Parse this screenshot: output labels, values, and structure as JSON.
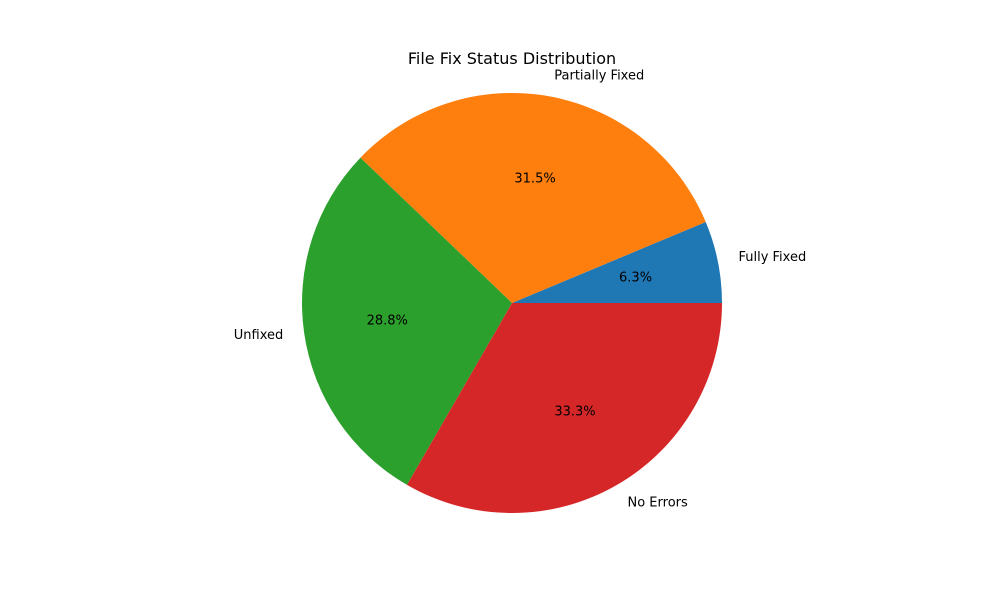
{
  "chart_data": {
    "type": "pie",
    "title": "File Fix Status Distribution",
    "start_angle_deg": 0,
    "direction": "counterclockwise",
    "slices": [
      {
        "label": "Fully Fixed",
        "value": 6.3,
        "pct_text": "6.3%",
        "color": "#1f77b4"
      },
      {
        "label": "Partially Fixed",
        "value": 31.5,
        "pct_text": "31.5%",
        "color": "#ff7f0e"
      },
      {
        "label": "Unfixed",
        "value": 28.8,
        "pct_text": "28.8%",
        "color": "#2ca02c"
      },
      {
        "label": "No Errors",
        "value": 33.3,
        "pct_text": "33.3%",
        "color": "#d62728"
      }
    ]
  }
}
